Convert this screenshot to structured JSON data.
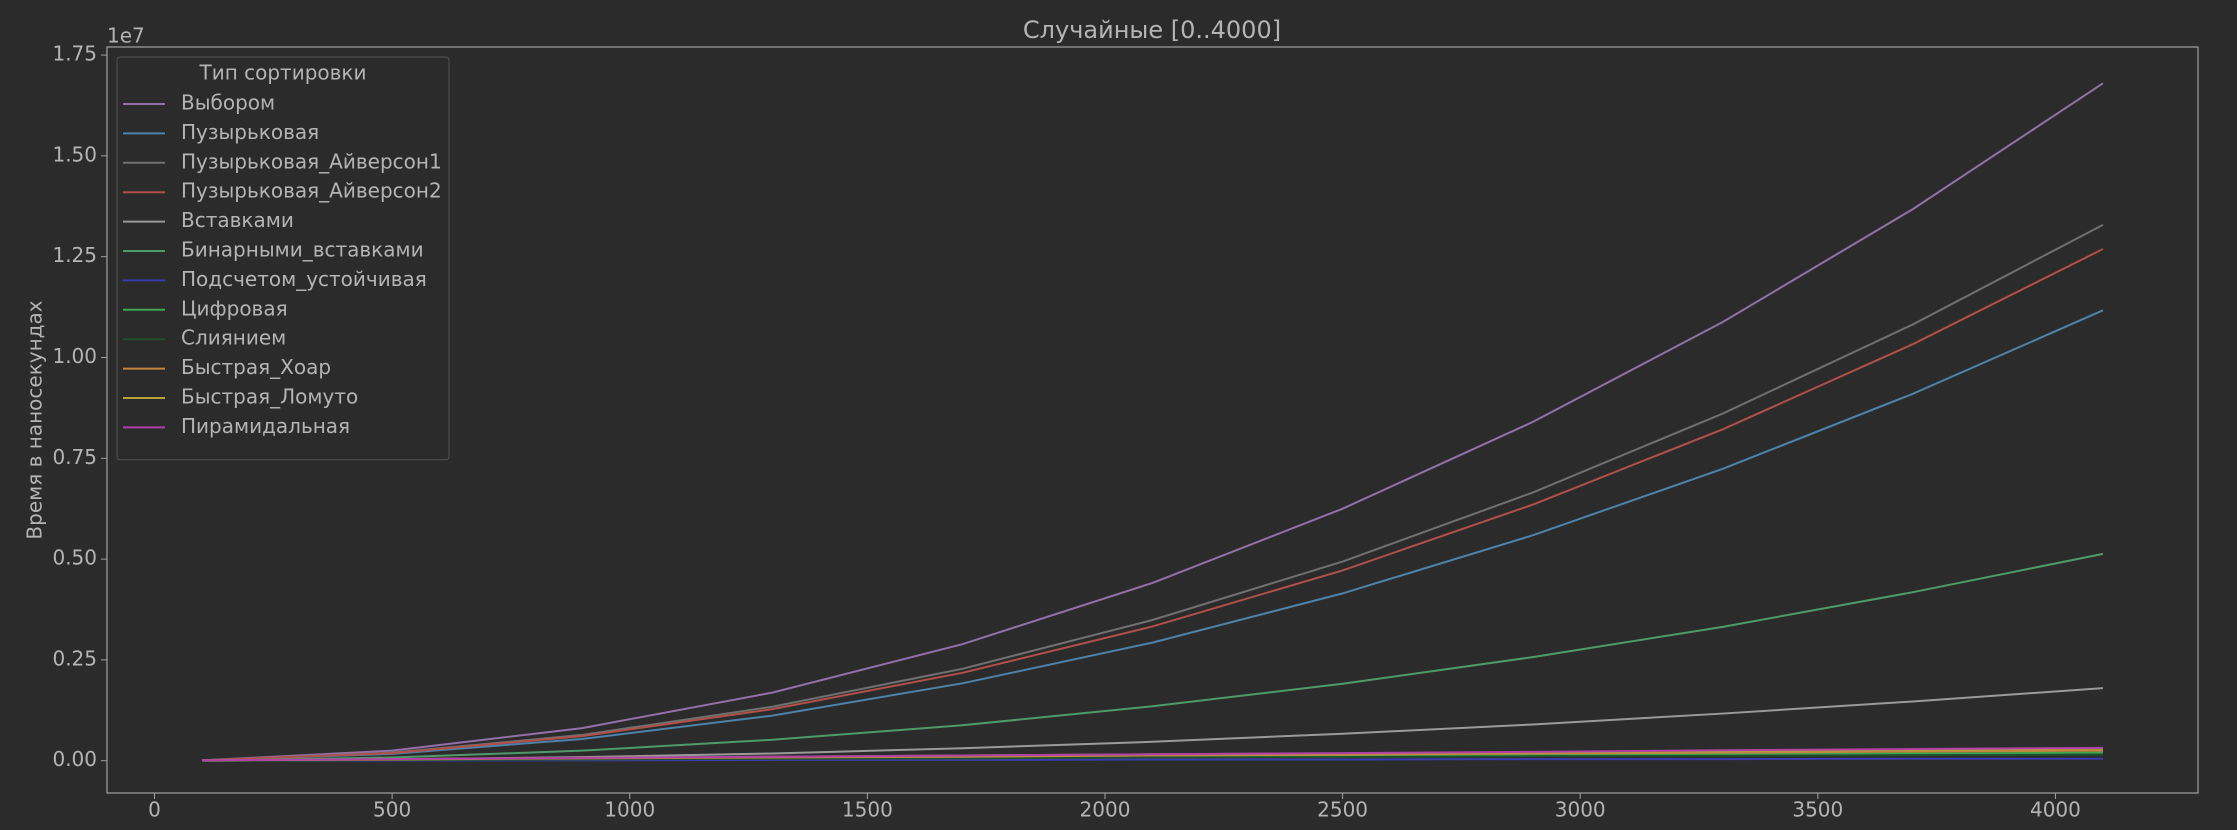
{
  "chart_data": {
    "type": "line",
    "title": "Случайные [0..4000]",
    "y_label": "Время в наносекундах",
    "y_offset_label": "1e7",
    "legend_title": "Тип сортировки",
    "legend": "upper left",
    "grid": false,
    "x": [
      100,
      500,
      900,
      1300,
      1700,
      2100,
      2500,
      2900,
      3300,
      3700,
      4100
    ],
    "xlim": [
      -100,
      4300
    ],
    "xticks": [
      0,
      500,
      1000,
      1500,
      2000,
      2500,
      3000,
      3500,
      4000
    ],
    "ylim": [
      -0.08,
      1.77
    ],
    "yticks": [
      {
        "value": 0,
        "label": "0.00"
      },
      {
        "value": 0.25,
        "label": "0.25"
      },
      {
        "value": 0.5,
        "label": "0.50"
      },
      {
        "value": 0.75,
        "label": "0.75"
      },
      {
        "value": 1,
        "label": "1.00"
      },
      {
        "value": 1.25,
        "label": "1.25"
      },
      {
        "value": 1.5,
        "label": "1.50"
      },
      {
        "value": 1.75,
        "label": "1.75"
      }
    ],
    "series": [
      {
        "name": "Выбором",
        "color": "#9370a8",
        "values": [
          0.001,
          0.025,
          0.081,
          0.169,
          0.289,
          0.441,
          0.625,
          0.84,
          1.088,
          1.368,
          1.68
        ]
      },
      {
        "name": "Пузырьковая",
        "color": "#4f82a8",
        "values": [
          0.001,
          0.017,
          0.054,
          0.112,
          0.192,
          0.293,
          0.415,
          0.559,
          0.724,
          0.91,
          1.117
        ]
      },
      {
        "name": "Пузырьковая_Айверсон1",
        "color": "#707070",
        "values": [
          0.001,
          0.02,
          0.064,
          0.134,
          0.228,
          0.349,
          0.494,
          0.665,
          0.861,
          1.082,
          1.329
        ]
      },
      {
        "name": "Пузырьковая_Айверсон2",
        "color": "#b0504a",
        "values": [
          0.001,
          0.019,
          0.061,
          0.128,
          0.218,
          0.333,
          0.472,
          0.635,
          0.822,
          1.033,
          1.269
        ]
      },
      {
        "name": "Вставками",
        "color": "#9a9a9a",
        "values": [
          0,
          0.003,
          0.009,
          0.018,
          0.031,
          0.047,
          0.067,
          0.09,
          0.117,
          0.147,
          0.18
        ]
      },
      {
        "name": "Бинарными_вставками",
        "color": "#4f9a6a",
        "values": [
          0,
          0.008,
          0.025,
          0.052,
          0.088,
          0.135,
          0.191,
          0.257,
          0.332,
          0.418,
          0.513
        ]
      },
      {
        "name": "Подсчетом_устойчивая",
        "color": "#3b3bb0",
        "values": [
          0,
          0.001,
          0.001,
          0.002,
          0.002,
          0.003,
          0.003,
          0.004,
          0.004,
          0.005,
          0.005
        ]
      },
      {
        "name": "Цифровая",
        "color": "#3fa54f",
        "values": [
          0,
          0.002,
          0.004,
          0.006,
          0.008,
          0.01,
          0.012,
          0.014,
          0.016,
          0.018,
          0.02
        ]
      },
      {
        "name": "Слиянием",
        "color": "#1f4f2a",
        "values": [
          0,
          0.002,
          0.003,
          0.005,
          0.006,
          0.008,
          0.009,
          0.011,
          0.012,
          0.014,
          0.015
        ]
      },
      {
        "name": "Быстрая_Хоар",
        "color": "#c2863f",
        "values": [
          0.001,
          0.003,
          0.006,
          0.008,
          0.01,
          0.013,
          0.015,
          0.018,
          0.02,
          0.023,
          0.025
        ]
      },
      {
        "name": "Быстрая_Ломуто",
        "color": "#b8a23a",
        "values": [
          0.001,
          0.004,
          0.007,
          0.01,
          0.013,
          0.016,
          0.018,
          0.021,
          0.024,
          0.027,
          0.03
        ]
      },
      {
        "name": "Пирамидальная",
        "color": "#b03fa8",
        "values": [
          0.001,
          0.004,
          0.007,
          0.01,
          0.013,
          0.016,
          0.019,
          0.022,
          0.026,
          0.029,
          0.032
        ]
      }
    ]
  }
}
